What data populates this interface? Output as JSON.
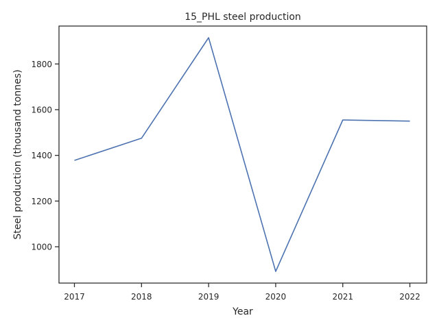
{
  "chart_data": {
    "type": "line",
    "title": "15_PHL steel production",
    "xlabel": "Year",
    "ylabel": "Steel production (thousand tonnes)",
    "x": [
      2017,
      2018,
      2019,
      2020,
      2021,
      2022
    ],
    "series": [
      {
        "values": [
          1378,
          1475,
          1915,
          892,
          1555,
          1550
        ]
      }
    ],
    "xlim": [
      2016.77,
      2022.25
    ],
    "ylim": [
      841,
      1966
    ],
    "xticks": [
      "2017",
      "2018",
      "2019",
      "2020",
      "2021",
      "2022"
    ],
    "yticks": [
      "1000",
      "1200",
      "1400",
      "1600",
      "1800"
    ],
    "line_color": "#4c72b0",
    "grid": false,
    "legend": "none"
  }
}
